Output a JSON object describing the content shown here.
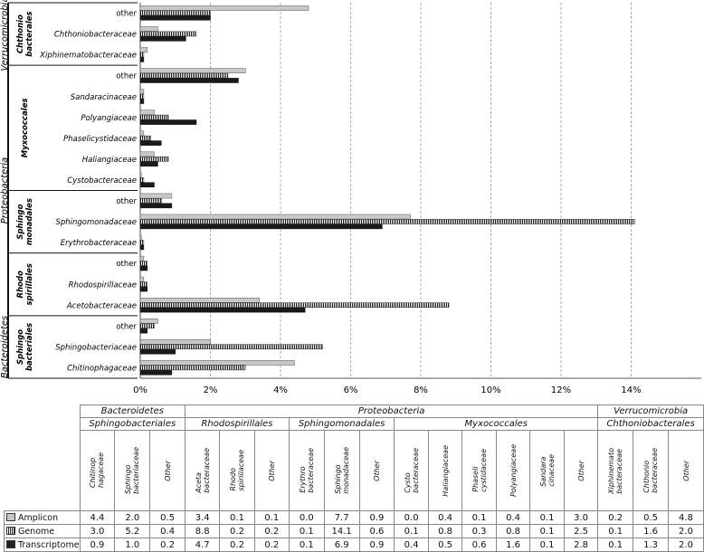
{
  "chart_data": {
    "type": "bar",
    "orientation": "horizontal",
    "x_axis": {
      "ticks": [
        "0%",
        "2%",
        "4%",
        "6%",
        "8%",
        "10%",
        "12%",
        "14%"
      ],
      "xlim": [
        0,
        16
      ]
    },
    "series": [
      {
        "name": "Amplicon",
        "color": "#c8c8c8",
        "pattern": "solid-grey"
      },
      {
        "name": "Genome",
        "color": "#1a1a1a",
        "pattern": "vertical-stripes"
      },
      {
        "name": "Transcriptome",
        "color": "#1a1a1a",
        "pattern": "solid-black"
      }
    ],
    "rows": [
      {
        "label": "other",
        "italic": false,
        "phylum": "Verrucomicrobia",
        "order": "Chthoniobacterales",
        "values": [
          4.8,
          2.0,
          2.0
        ]
      },
      {
        "label": "Chthoniobacteraceae",
        "italic": true,
        "phylum": "Verrucomicrobia",
        "order": "Chthoniobacterales",
        "values": [
          0.5,
          1.6,
          1.3
        ]
      },
      {
        "label": "Xiphinematobacteraceae",
        "italic": true,
        "phylum": "Verrucomicrobia",
        "order": "Chthoniobacterales",
        "values": [
          0.2,
          0.1,
          0.1
        ]
      },
      {
        "label": "other",
        "italic": false,
        "phylum": "Proteobacteria",
        "order": "Myxococcales",
        "values": [
          3.0,
          2.5,
          2.8
        ]
      },
      {
        "label": "Sandaracinaceae",
        "italic": true,
        "phylum": "Proteobacteria",
        "order": "Myxococcales",
        "values": [
          0.1,
          0.1,
          0.1
        ]
      },
      {
        "label": "Polyangiaceae",
        "italic": true,
        "phylum": "Proteobacteria",
        "order": "Myxococcales",
        "values": [
          0.4,
          0.8,
          1.6
        ]
      },
      {
        "label": "Phaselicystidaceae",
        "italic": true,
        "phylum": "Proteobacteria",
        "order": "Myxococcales",
        "values": [
          0.1,
          0.3,
          0.6
        ]
      },
      {
        "label": "Haliangiaceae",
        "italic": true,
        "phylum": "Proteobacteria",
        "order": "Myxococcales",
        "values": [
          0.4,
          0.8,
          0.5
        ]
      },
      {
        "label": "Cystobacteraceae",
        "italic": true,
        "phylum": "Proteobacteria",
        "order": "Myxococcales",
        "values": [
          0.0,
          0.1,
          0.4
        ]
      },
      {
        "label": "other",
        "italic": false,
        "phylum": "Proteobacteria",
        "order": "Sphingomonadales",
        "values": [
          0.9,
          0.6,
          0.9
        ]
      },
      {
        "label": "Sphingomonadaceae",
        "italic": true,
        "phylum": "Proteobacteria",
        "order": "Sphingomonadales",
        "values": [
          7.7,
          14.1,
          6.9
        ]
      },
      {
        "label": "Erythrobacteraceae",
        "italic": true,
        "phylum": "Proteobacteria",
        "order": "Sphingomonadales",
        "values": [
          0.0,
          0.1,
          0.1
        ]
      },
      {
        "label": "other",
        "italic": false,
        "phylum": "Proteobacteria",
        "order": "Rhodospirillales",
        "values": [
          0.1,
          0.2,
          0.2
        ]
      },
      {
        "label": "Rhodospirillaceae",
        "italic": true,
        "phylum": "Proteobacteria",
        "order": "Rhodospirillales",
        "values": [
          0.1,
          0.2,
          0.2
        ]
      },
      {
        "label": "Acetobacteraceae",
        "italic": true,
        "phylum": "Proteobacteria",
        "order": "Rhodospirillales",
        "values": [
          3.4,
          8.8,
          4.7
        ]
      },
      {
        "label": "other",
        "italic": false,
        "phylum": "Bacteroidetes",
        "order": "Sphingobacteriales",
        "values": [
          0.5,
          0.4,
          0.2
        ]
      },
      {
        "label": "Sphingobacteriaceae",
        "italic": true,
        "phylum": "Bacteroidetes",
        "order": "Sphingobacteriales",
        "values": [
          2.0,
          5.2,
          1.0
        ]
      },
      {
        "label": "Chitinophagaceae",
        "italic": true,
        "phylum": "Bacteroidetes",
        "order": "Sphingobacteriales",
        "values": [
          4.4,
          3.0,
          0.9
        ]
      }
    ],
    "order_labels": [
      {
        "name": "Chthoniobacterales",
        "lines": [
          "Chthonio",
          "bacterales"
        ]
      },
      {
        "name": "Myxococcales",
        "lines": [
          "Myxococcales"
        ]
      },
      {
        "name": "Sphingomonadales",
        "lines": [
          "Sphingo",
          "monadales"
        ]
      },
      {
        "name": "Rhodospirillales",
        "lines": [
          "Rhodo",
          "spirillales"
        ]
      },
      {
        "name": "Sphingobacteriales",
        "lines": [
          "Sphingo",
          "bacteriales"
        ]
      }
    ],
    "phylum_labels": [
      "Verrucomicrobia",
      "Proteobacteria",
      "Bacteroidetes"
    ]
  },
  "table": {
    "phyla": [
      {
        "name": "Bacteroidetes",
        "span": 3
      },
      {
        "name": "Proteobacteria",
        "span": 12
      },
      {
        "name": "Verrucomicrobia",
        "span": 3
      }
    ],
    "orders": [
      {
        "name": "Sphingobacteriales",
        "span": 3
      },
      {
        "name": "Rhodospirillales",
        "span": 3
      },
      {
        "name": "Sphingomonadales",
        "span": 3
      },
      {
        "name": "Myxococcales",
        "span": 6
      },
      {
        "name": "Chthoniobacterales",
        "span": 3
      }
    ],
    "families": [
      {
        "text": "Chitinop\nhagaceae",
        "italic": true
      },
      {
        "text": "Sphingo\nbacteriaceae",
        "italic": true
      },
      {
        "text": "Other",
        "italic": true
      },
      {
        "text": "Aceta\nbacteraceae",
        "italic": true
      },
      {
        "text": "Rhodo\nspirillaceae",
        "italic": true
      },
      {
        "text": "Other",
        "italic": true
      },
      {
        "text": "Erythro\nbacteraceae",
        "italic": true
      },
      {
        "text": "Sphingo\nmonadaceae",
        "italic": true
      },
      {
        "text": "Other",
        "italic": true
      },
      {
        "text": "Cysto\nbacteraceae",
        "italic": true
      },
      {
        "text": "Haliangiaceae",
        "italic": true
      },
      {
        "text": "Phaseli\ncystidaceae",
        "italic": true
      },
      {
        "text": "Polyangiaceae",
        "italic": true
      },
      {
        "text": "Sandara\ncinaceae",
        "italic": true
      },
      {
        "text": "Other",
        "italic": true
      },
      {
        "text": "Xiphinemato\nbacteraceae",
        "italic": true
      },
      {
        "text": "Chthonio\nbacteraceae",
        "italic": true
      },
      {
        "text": "Other",
        "italic": true
      }
    ],
    "rows": [
      {
        "label": "Amplicon",
        "swatch": "amp",
        "values": [
          "4.4",
          "2.0",
          "0.5",
          "3.4",
          "0.1",
          "0.1",
          "0.0",
          "7.7",
          "0.9",
          "0.0",
          "0.4",
          "0.1",
          "0.4",
          "0.1",
          "3.0",
          "0.2",
          "0.5",
          "4.8"
        ]
      },
      {
        "label": "Genome",
        "swatch": "gen",
        "values": [
          "3.0",
          "5.2",
          "0.4",
          "8.8",
          "0.2",
          "0.2",
          "0.1",
          "14.1",
          "0.6",
          "0.1",
          "0.8",
          "0.3",
          "0.8",
          "0.1",
          "2.5",
          "0.1",
          "1.6",
          "2.0"
        ]
      },
      {
        "label": "Transcriptome",
        "swatch": "tra",
        "values": [
          "0.9",
          "1.0",
          "0.2",
          "4.7",
          "0.2",
          "0.2",
          "0.1",
          "6.9",
          "0.9",
          "0.4",
          "0.5",
          "0.6",
          "1.6",
          "0.1",
          "2.8",
          "0.1",
          "1.3",
          "2.0"
        ]
      }
    ]
  }
}
